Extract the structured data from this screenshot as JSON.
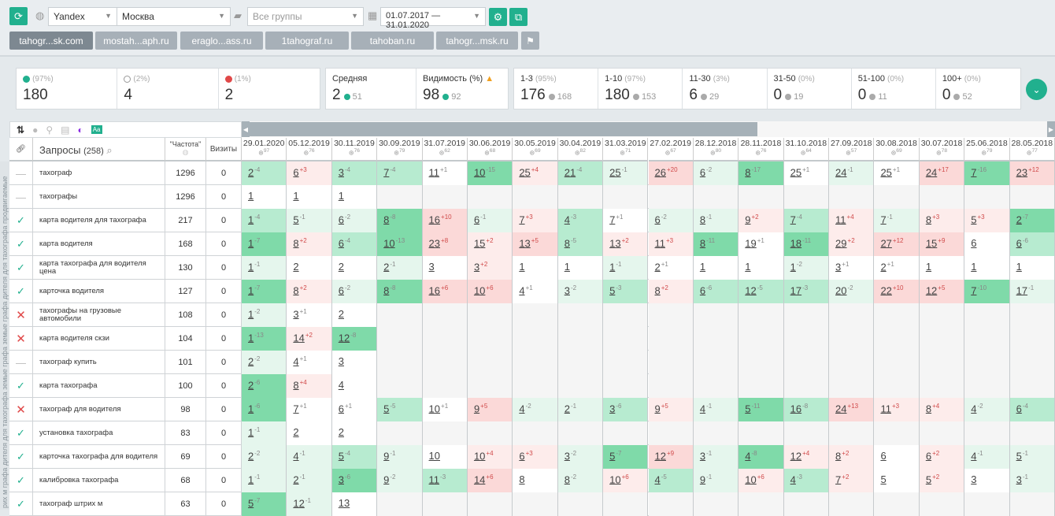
{
  "toolbar": {
    "search_engine": "Yandex",
    "region": "Москва",
    "groups_placeholder": "Все группы",
    "date_range": "01.07.2017 — 31.01.2020"
  },
  "projects": [
    {
      "label": "tahogr...sk.com",
      "active": true
    },
    {
      "label": "mostah...aph.ru"
    },
    {
      "label": "eraglo...ass.ru"
    },
    {
      "label": "1tahograf.ru"
    },
    {
      "label": "tahoban.ru"
    },
    {
      "label": "tahogr...msk.ru"
    }
  ],
  "stats": {
    "up": {
      "pct": "(97%)",
      "value": "180"
    },
    "same": {
      "pct": "(2%)",
      "value": "4"
    },
    "down": {
      "pct": "(1%)",
      "value": "2"
    },
    "avg": {
      "label": "Средняя",
      "value": "2",
      "delta": "51"
    },
    "vis": {
      "label": "Видимость (%)",
      "value": "98",
      "delta": "92"
    },
    "ranges": [
      {
        "label": "1-3",
        "pct": "(95%)",
        "value": "176",
        "delta": "168"
      },
      {
        "label": "1-10",
        "pct": "(97%)",
        "value": "180",
        "delta": "153"
      },
      {
        "label": "11-30",
        "pct": "(3%)",
        "value": "6",
        "delta": "29"
      },
      {
        "label": "31-50",
        "pct": "(0%)",
        "value": "0",
        "delta": "19"
      },
      {
        "label": "51-100",
        "pct": "(0%)",
        "value": "0",
        "delta": "11"
      },
      {
        "label": "100+",
        "pct": "(0%)",
        "value": "0",
        "delta": "52"
      }
    ]
  },
  "group_label": "рих м графа дителя для тахографа земые графа земые графа дителя для тахографа продвигаемые",
  "table": {
    "queries_label": "Запросы",
    "queries_count": "(258)",
    "freq_label": "\"Частота\"",
    "visits_label": "Визиты",
    "dates": [
      [
        "29.01.2020",
        "97"
      ],
      [
        "05.12.2019",
        "76"
      ],
      [
        "30.11.2019",
        "76"
      ],
      [
        "30.09.2019",
        "79"
      ],
      [
        "31.07.2019",
        "62"
      ],
      [
        "30.06.2019",
        "68"
      ],
      [
        "30.05.2019",
        "69"
      ],
      [
        "30.04.2019",
        "82"
      ],
      [
        "31.03.2019",
        "71"
      ],
      [
        "27.02.2019",
        "67"
      ],
      [
        "28.12.2018",
        "80"
      ],
      [
        "28.11.2018",
        "76"
      ],
      [
        "31.10.2018",
        "64"
      ],
      [
        "27.09.2018",
        "57"
      ],
      [
        "30.08.2018",
        "69"
      ],
      [
        "30.07.2018",
        "78"
      ],
      [
        "25.06.2018",
        "79"
      ],
      [
        "28.05.2018",
        "77"
      ]
    ],
    "rows": [
      {
        "status": "dash",
        "query": "тахограф",
        "freq": "1296",
        "visits": "0",
        "cells": [
          "2|-4|g2",
          "6|+3|r1",
          "3|-4|g2",
          "7|-4|g2",
          "11|+1|w",
          "10|-15|g3",
          "25|+4|r1",
          "21|-4|g2",
          "25|-1|g1",
          "26|+20|r2",
          "6|-2|g1",
          "8|-17|g3",
          "25|+1|w",
          "24|-1|g1",
          "25|+1|w",
          "24|+17|r2",
          "7|-16|g3",
          "23|+12|r2"
        ]
      },
      {
        "status": "dash",
        "query": "тахографы",
        "freq": "1296",
        "visits": "0",
        "cells": [
          "1||w",
          "1||w",
          "1||w"
        ]
      },
      {
        "status": "check",
        "query": "карта водителя для тахографа",
        "freq": "217",
        "visits": "0",
        "cells": [
          "1|-4|g2",
          "5|-1|g1",
          "6|-2|g1",
          "8|-8|g3",
          "16|+10|r2",
          "6|-1|g1",
          "7|+3|r1",
          "4|-3|g2",
          "7|+1|w",
          "6|-2|g1",
          "8|-1|g1",
          "9|+2|r1",
          "7|-4|g2",
          "11|+4|r1",
          "7|-1|g1",
          "8|+3|r1",
          "5|+3|r1",
          "2|-7|g3"
        ]
      },
      {
        "status": "check",
        "query": "карта водителя",
        "freq": "168",
        "visits": "0",
        "cells": [
          "1|-7|g3",
          "8|+2|r1",
          "6|-4|g2",
          "10|-13|g3",
          "23|+8|r2",
          "15|+2|r1",
          "13|+5|r2",
          "8|-5|g2",
          "13|+2|r1",
          "11|+3|r1",
          "8|-11|g3",
          "19|+1|w",
          "18|-11|g3",
          "29|+2|r1",
          "27|+12|r2",
          "15|+9|r2",
          "6||w",
          "6|-6|g2"
        ]
      },
      {
        "status": "check",
        "query": "карта тахографа для водителя цена",
        "freq": "130",
        "visits": "0",
        "cells": [
          "1|-1|g1",
          "2||w",
          "2||w",
          "2|-1|g1",
          "3||w",
          "3|+2|r1",
          "1||w",
          "1||w",
          "1|-1|g1",
          "2|+1|w",
          "1||w",
          "1||w",
          "1|-2|g1",
          "3|+1|w",
          "2|+1|w",
          "1||w",
          "1||w",
          "1||w"
        ]
      },
      {
        "status": "check",
        "query": "карточка водителя",
        "freq": "127",
        "visits": "0",
        "cells": [
          "1|-7|g3",
          "8|+2|r1",
          "6|-2|g1",
          "8|-8|g3",
          "16|+6|r2",
          "10|+6|r2",
          "4|+1|w",
          "3|-2|g1",
          "5|-3|g2",
          "8|+2|r1",
          "6|-6|g2",
          "12|-5|g2",
          "17|-3|g2",
          "20|-2|g1",
          "22|+10|r2",
          "12|+5|r2",
          "7|-10|g3",
          "17|-1|g1"
        ]
      },
      {
        "status": "cross",
        "query": "тахографы на грузовые автомобили",
        "freq": "108",
        "visits": "0",
        "cells": [
          "1|-2|g1",
          "3|+1|w",
          "2||w"
        ]
      },
      {
        "status": "cross",
        "query": "карта водителя скзи",
        "freq": "104",
        "visits": "0",
        "cells": [
          "1|-13|g3",
          "14|+2|r1",
          "12|-8|g3"
        ]
      },
      {
        "status": "dash",
        "query": "тахограф купить",
        "freq": "101",
        "visits": "0",
        "cells": [
          "2|-2|g1",
          "4|+1|w",
          "3||w"
        ]
      },
      {
        "status": "check",
        "query": "карта тахографа",
        "freq": "100",
        "visits": "0",
        "cells": [
          "2|-6|g3",
          "8|+4|r1",
          "4||w"
        ]
      },
      {
        "status": "cross",
        "query": "тахограф для водителя",
        "freq": "98",
        "visits": "0",
        "cells": [
          "1|-6|g3",
          "7|+1|w",
          "6|+1|w",
          "5|-5|g2",
          "10|+1|w",
          "9|+5|r2",
          "4|-2|g1",
          "2|-1|g1",
          "3|-6|g2",
          "9|+5|r1",
          "4|-1|g1",
          "5|-11|g3",
          "16|-8|g2",
          "24|+13|r2",
          "11|+3|r1",
          "8|+4|r1",
          "4|-2|g1",
          "6|-4|g2"
        ]
      },
      {
        "status": "check",
        "query": "установка тахографа",
        "freq": "83",
        "visits": "0",
        "cells": [
          "1|-1|g1",
          "2||w",
          "2||w"
        ]
      },
      {
        "status": "check",
        "query": "карточка тахографа для водителя",
        "freq": "69",
        "visits": "0",
        "cells": [
          "2|-2|g1",
          "4|-1|g1",
          "5|-4|g2",
          "9|-1|g1",
          "10||w",
          "10|+4|r1",
          "6|+3|r1",
          "3|-2|g1",
          "5|-7|g3",
          "12|+9|r2",
          "3|-1|g1",
          "4|-8|g3",
          "12|+4|r1",
          "8|+2|r1",
          "6||w",
          "6|+2|r1",
          "4|-1|g1",
          "5|-1|g1"
        ]
      },
      {
        "status": "check",
        "query": "калибровка тахографа",
        "freq": "68",
        "visits": "0",
        "cells": [
          "1|-1|g1",
          "2|-1|g1",
          "3|-6|g3",
          "9|-2|g1",
          "11|-3|g2",
          "14|+6|r2",
          "8||w",
          "8|-2|g1",
          "10|+6|r1",
          "4|-5|g2",
          "9|-1|g1",
          "10|+6|r1",
          "4|-3|g2",
          "7|+2|r1",
          "5||w",
          "5|+2|r1",
          "3||w",
          "3|-1|g1"
        ]
      },
      {
        "status": "check",
        "query": "тахограф штрих м",
        "freq": "63",
        "visits": "0",
        "cells": [
          "5|-7|g3",
          "12|-1|g1",
          "13||w"
        ]
      }
    ]
  },
  "colors": {
    "accent": "#21b08e",
    "green": "#7fdaa9",
    "red": "#fbd9d8"
  }
}
